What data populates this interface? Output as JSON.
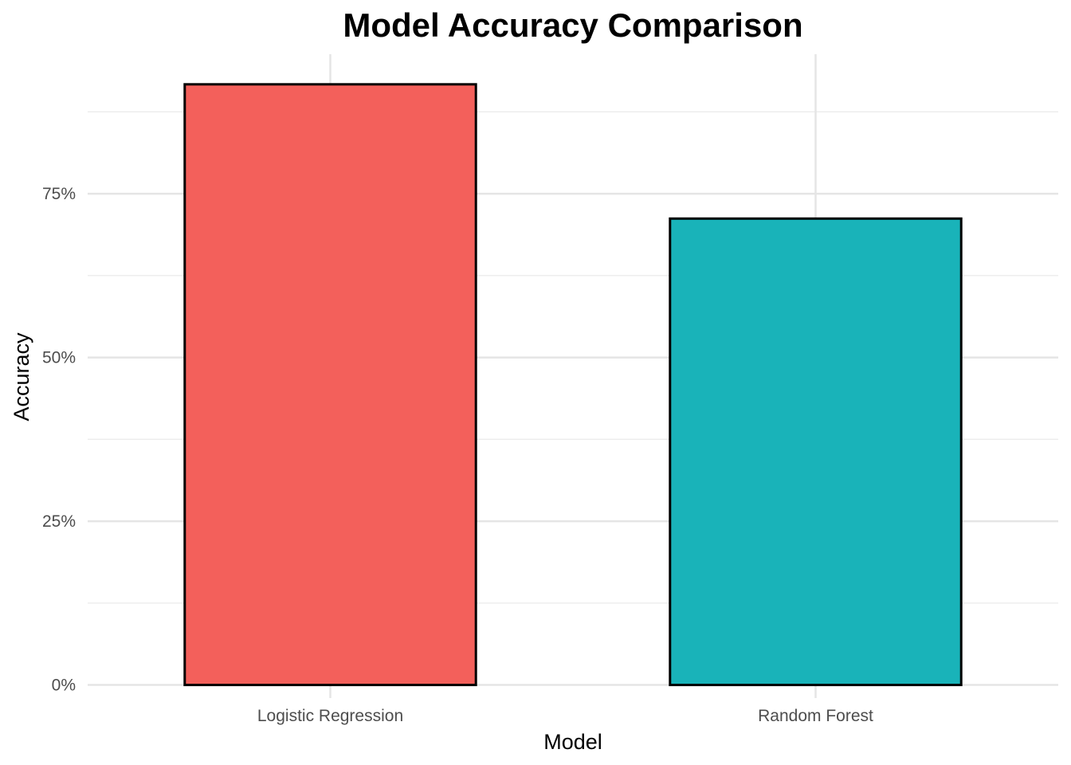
{
  "chart_data": {
    "type": "bar",
    "title": "Model Accuracy Comparison",
    "xlabel": "Model",
    "ylabel": "Accuracy",
    "categories": [
      "Logistic Regression",
      "Random Forest"
    ],
    "values": [
      0.917,
      0.712
    ],
    "colors": [
      "#F3605B",
      "#19B3B9"
    ],
    "bar_border_color": "#000000",
    "ylim": [
      -0.02,
      0.963
    ],
    "y_ticks": [
      {
        "value": 0,
        "label": "0%"
      },
      {
        "value": 0.25,
        "label": "25%"
      },
      {
        "value": 0.5,
        "label": "50%"
      },
      {
        "value": 0.75,
        "label": "75%"
      }
    ],
    "y_minor_ticks": [
      0.125,
      0.375,
      0.625,
      0.875
    ],
    "grid": true,
    "legend": "none"
  }
}
